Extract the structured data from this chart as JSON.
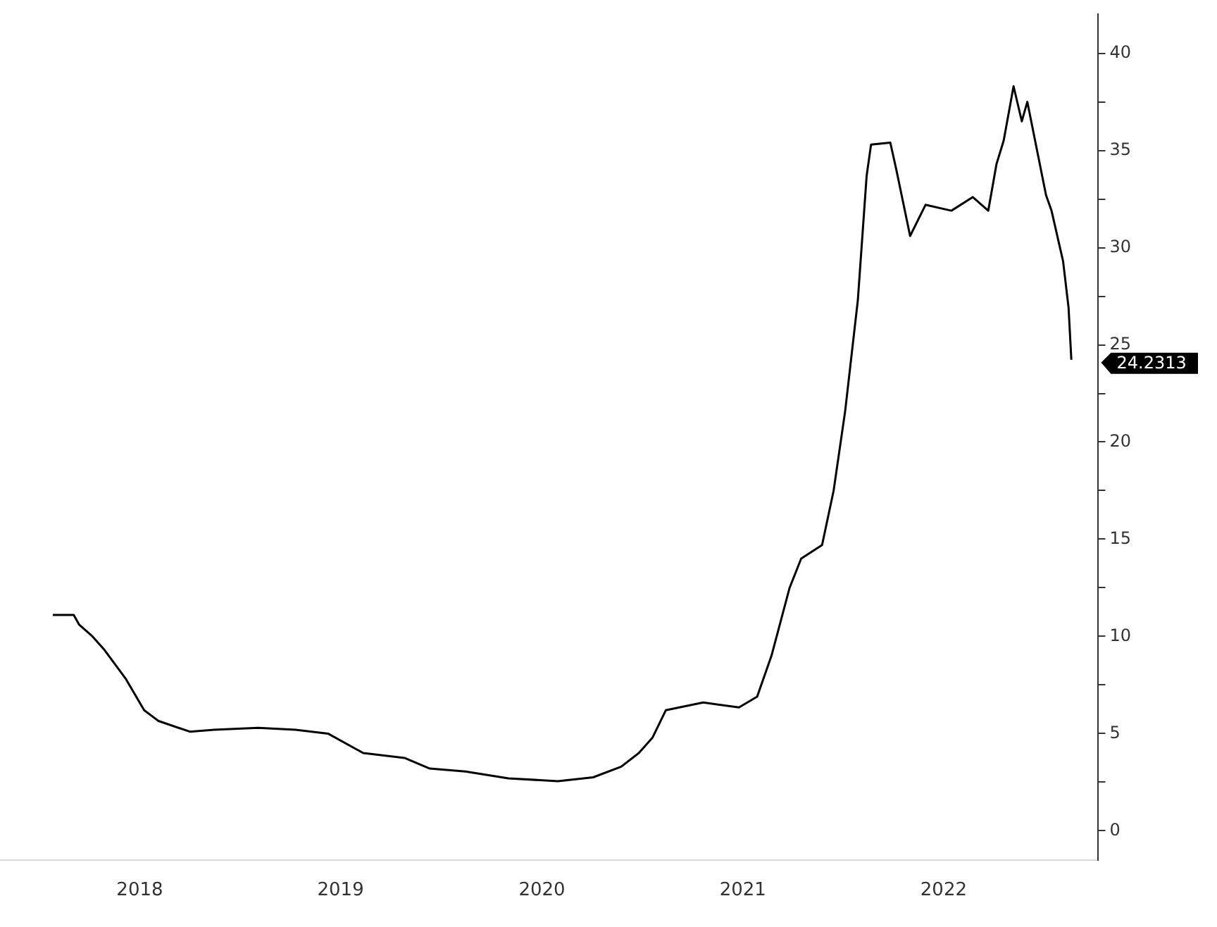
{
  "chart_data": {
    "type": "line",
    "x": [
      "2018-01-24",
      "2018-03-03",
      "2018-03-13",
      "2018-04-06",
      "2018-04-28",
      "2018-06-06",
      "2018-07-09",
      "2018-08-04",
      "2018-09-30",
      "2018-11-13",
      "2019-02-01",
      "2019-04-10",
      "2019-06-08",
      "2019-08-11",
      "2019-10-25",
      "2019-12-10",
      "2020-02-13",
      "2020-05-01",
      "2020-07-30",
      "2020-10-02",
      "2020-11-22",
      "2020-12-24",
      "2021-01-18",
      "2021-02-11",
      "2021-04-20",
      "2021-06-24",
      "2021-07-27",
      "2021-08-22",
      "2021-09-24",
      "2021-10-15",
      "2021-11-22",
      "2021-12-13",
      "2022-01-03",
      "2022-01-26",
      "2022-02-11",
      "2022-02-19",
      "2022-03-26",
      "2022-04-06",
      "2022-05-01",
      "2022-05-29",
      "2022-07-15",
      "2022-08-23",
      "2022-09-20",
      "2022-10-05",
      "2022-10-18",
      "2022-11-05",
      "2022-11-20",
      "2022-11-30",
      "2023-01-03",
      "2023-01-13",
      "2023-02-03",
      "2023-02-13",
      "2023-02-18"
    ],
    "series": [
      {
        "color": "#000000",
        "values": [
          11.1,
          11.1,
          10.6,
          10.0,
          9.3,
          7.8,
          6.2,
          5.65,
          5.1,
          5.2,
          5.3,
          5.2,
          5.0,
          4.0,
          3.75,
          3.2,
          3.05,
          2.7,
          2.55,
          2.75,
          3.3,
          4.0,
          4.8,
          6.2,
          6.6,
          6.35,
          6.9,
          9.0,
          12.5,
          14.0,
          14.7,
          17.5,
          21.6,
          27.3,
          33.7,
          35.3,
          35.4,
          34.0,
          30.6,
          32.2,
          31.9,
          32.6,
          31.9,
          34.3,
          35.5,
          38.3,
          36.5,
          37.5,
          32.7,
          31.9,
          29.3,
          26.9,
          24.2313
        ]
      }
    ],
    "xlim": [
      "2017-10-20",
      "2023-04-08"
    ],
    "xticks": [
      {
        "value": "2018-07-01",
        "label": "2018"
      },
      {
        "value": "2019-07-01",
        "label": "2019"
      },
      {
        "value": "2020-07-01",
        "label": "2020"
      },
      {
        "value": "2021-07-01",
        "label": "2021"
      },
      {
        "value": "2022-07-01",
        "label": "2022"
      }
    ],
    "ylim": [
      -1.5,
      42
    ],
    "yticks": [
      0,
      {
        "value": 2.5,
        "label": null
      },
      5,
      {
        "value": 7.5,
        "label": null
      },
      10,
      {
        "value": 12.5,
        "label": null
      },
      15,
      {
        "value": 17.5,
        "label": null
      },
      20,
      {
        "value": 22.5,
        "label": null
      },
      25,
      {
        "value": 27.5,
        "label": null
      },
      30,
      {
        "value": 32.5,
        "label": null
      },
      35,
      {
        "value": 37.5,
        "label": null
      },
      40
    ],
    "annotations": [
      {
        "text": "24.2313",
        "x": "2023-02-18",
        "y": 24.2313
      }
    ],
    "grid": false,
    "legend": false,
    "marker": "none",
    "line_style": "solid"
  }
}
